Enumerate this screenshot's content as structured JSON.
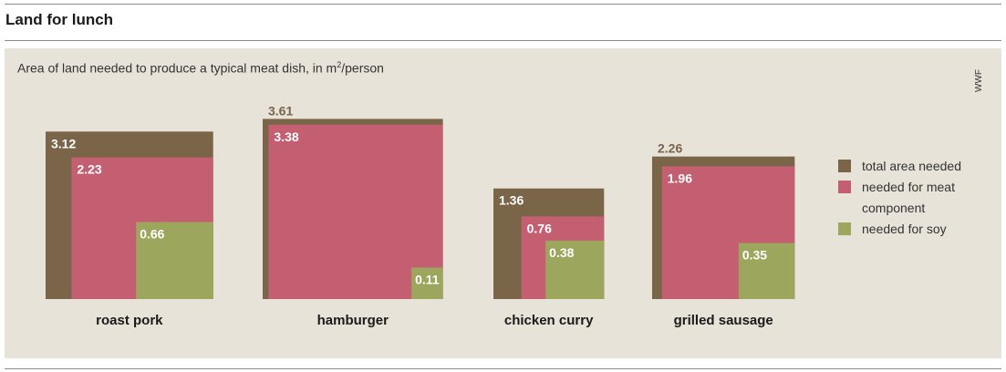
{
  "title": "Land for lunch",
  "subtitle_main": "Area of land needed to produce a typical meat dish, in m",
  "subtitle_sup": "2",
  "subtitle_tail": "/person",
  "source": "WWF",
  "colors": {
    "total": "#7a6549",
    "meat": "#c45f72",
    "soy": "#9ca65d",
    "panel": "#e8e3d8",
    "label_outside": "#7a6549"
  },
  "legend": [
    {
      "key": "total",
      "label": "total area needed"
    },
    {
      "key": "meat",
      "label": "needed for meat component"
    },
    {
      "key": "soy",
      "label": "needed for soy"
    }
  ],
  "chart_data": {
    "type": "bar",
    "title": "Land for lunch",
    "subtitle": "Area of land needed to produce a typical meat dish, in m²/person",
    "categories": [
      "roast pork",
      "hamburger",
      "chicken curry",
      "grilled sausage"
    ],
    "series": [
      {
        "name": "total area needed",
        "values": [
          3.12,
          3.61,
          1.36,
          2.26
        ]
      },
      {
        "name": "needed for meat component",
        "values": [
          2.23,
          3.38,
          0.76,
          1.96
        ]
      },
      {
        "name": "needed for soy",
        "values": [
          0.66,
          0.11,
          0.38,
          0.35
        ]
      }
    ],
    "legend_position": "right"
  }
}
